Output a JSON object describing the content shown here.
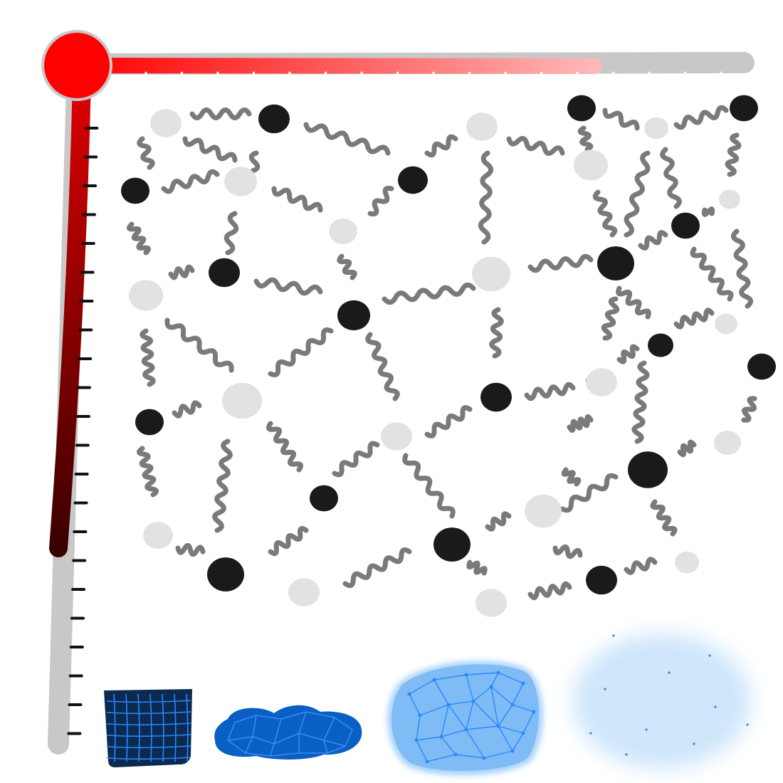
{
  "figure": {
    "kind": "hand-drawn schematic of a polymer network: dark crosslink nodes joined by wavy chains, with a top bar and side bar that have tick marks, and four textured blobs along the bottom",
    "text_labels": [],
    "colors": {
      "background": "#ffffff",
      "track_gray": "#c8c8c8",
      "top_gradient_start": "#ff0000",
      "top_gradient_end": "#ffb8b8",
      "side_gradient_start": "#e00000",
      "side_gradient_end": "#3a0000",
      "crosslink_node": "#1a1a1a",
      "free_node": "#e2e2e2",
      "chain": "#7a7a7a",
      "tick_black": "#111111",
      "tick_white": "#ffffff",
      "blob_dark_navy": "#0b2a50",
      "blob_blue": "#0a5fc4",
      "blob_light_blue": "#7fbcf5",
      "blob_pale_blue": "#cfe6fb",
      "mesh_line": "#2b87ff"
    },
    "top_bar": {
      "tick_count": 17,
      "filled_fraction": 0.74
    },
    "side_bar": {
      "tick_count": 22,
      "filled_fraction": 0.7
    },
    "bottom_blobs": [
      {
        "name": "dense-square-mesh",
        "fill": "blob_dark_navy",
        "mesh": "square-grid"
      },
      {
        "name": "dense-cloud-mesh",
        "fill": "blob_blue",
        "mesh": "cell-network"
      },
      {
        "name": "open-triangle-mesh",
        "fill": "blob_light_blue",
        "mesh": "triangle-network"
      },
      {
        "name": "sparse-diffuse-cloud",
        "fill": "blob_pale_blue",
        "mesh": "scattered-dots"
      }
    ]
  }
}
